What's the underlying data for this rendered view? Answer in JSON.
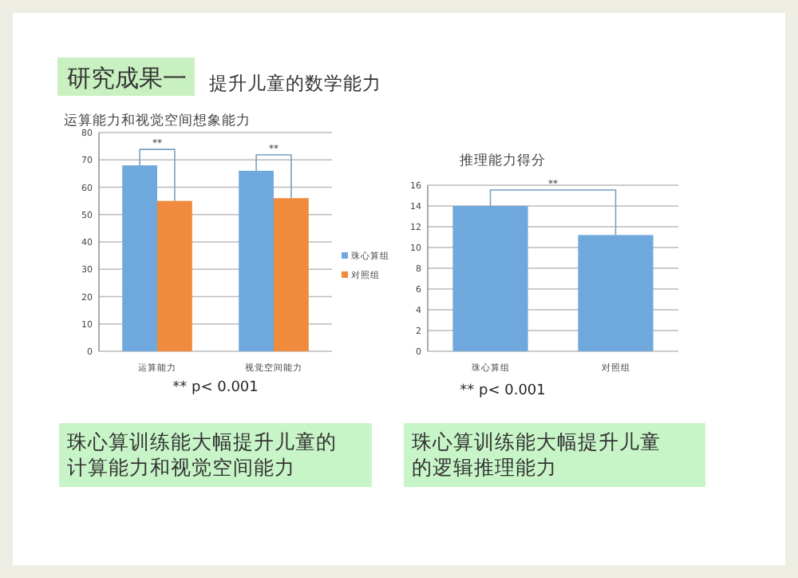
{
  "chart_data": [
    {
      "type": "bar",
      "title": "运算能力和视觉空间想象能力",
      "categories": [
        "运算能力",
        "视觉空间能力"
      ],
      "series": [
        {
          "name": "珠心算组",
          "color": "#6fa8dc",
          "values": [
            68,
            66
          ]
        },
        {
          "name": "对照组",
          "color": "#f08a3c",
          "values": [
            55,
            56
          ]
        }
      ],
      "ylim": [
        0,
        80
      ],
      "yticks": [
        0,
        10,
        20,
        30,
        40,
        50,
        60,
        70,
        80
      ],
      "grid": "y",
      "legend": "right",
      "annotations": [
        "研究成果一",
        "提升儿童的数学能力",
        "**",
        "**",
        "** p< 0.001",
        "珠心算训练能大幅提升儿童的计算能力和视觉空间能力"
      ]
    },
    {
      "type": "bar",
      "title": "推理能力得分",
      "categories": [
        "珠心算组",
        "对照组"
      ],
      "values": [
        14,
        11.2
      ],
      "color": "#6fa8dc",
      "ylim": [
        0,
        16
      ],
      "yticks": [
        0,
        2,
        4,
        6,
        8,
        10,
        12,
        14,
        16
      ],
      "grid": "y",
      "annotations": [
        "**",
        "** p< 0.001",
        "珠心算训练能大幅提升儿童的逻辑推理能力"
      ]
    }
  ]
}
